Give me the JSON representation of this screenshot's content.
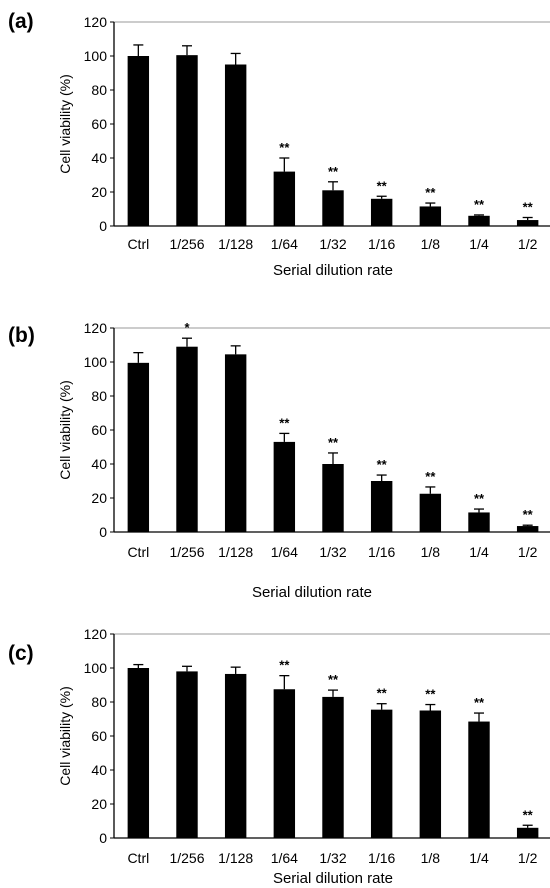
{
  "chart_data": [
    {
      "panel": "(a)",
      "type": "bar",
      "categories": [
        "Ctrl",
        "1/256",
        "1/128",
        "1/64",
        "1/32",
        "1/16",
        "1/8",
        "1/4",
        "1/2"
      ],
      "series": [
        {
          "values": [
            100,
            100.5,
            95,
            32,
            21,
            16,
            11.5,
            6,
            3.5
          ],
          "errors": [
            6.5,
            5.5,
            6.5,
            8,
            5,
            1.5,
            2,
            0.5,
            1.5
          ],
          "significance": [
            "",
            "",
            "",
            "**",
            "**",
            "**",
            "**",
            "**",
            "**"
          ]
        }
      ],
      "xlabel": "Serial dilution  rate",
      "ylabel": "Cell viability (%)",
      "ylim": [
        0,
        120
      ],
      "yticks": [
        "0",
        "20",
        "40",
        "60",
        "80",
        "100",
        "120"
      ],
      "color": "#000000",
      "grid": false
    },
    {
      "panel": "(b)",
      "type": "bar",
      "categories": [
        "Ctrl",
        "1/256",
        "1/128",
        "1/64",
        "1/32",
        "1/16",
        "1/8",
        "1/4",
        "1/2"
      ],
      "series": [
        {
          "values": [
            99.5,
            109,
            104.5,
            53,
            40,
            30,
            22.5,
            11.5,
            3.5
          ],
          "errors": [
            6,
            5,
            5,
            5,
            6.5,
            3.5,
            4,
            2,
            0.5
          ],
          "significance": [
            "",
            "*",
            "",
            "**",
            "**",
            "**",
            "**",
            "**",
            "**"
          ]
        }
      ],
      "xlabel": "Serial  dilution rate",
      "ylabel": "Cell viability (%)",
      "ylim": [
        0,
        120
      ],
      "yticks": [
        "0",
        "20",
        "40",
        "60",
        "80",
        "100",
        "120"
      ],
      "color": "#000000",
      "grid": false
    },
    {
      "panel": "(c)",
      "type": "bar",
      "categories": [
        "Ctrl",
        "1/256",
        "1/128",
        "1/64",
        "1/32",
        "1/16",
        "1/8",
        "1/4",
        "1/2"
      ],
      "series": [
        {
          "values": [
            100,
            98,
            96.5,
            87.5,
            83,
            75.5,
            75,
            68.5,
            6
          ],
          "errors": [
            2,
            3,
            4,
            8,
            4,
            3.5,
            3.5,
            5,
            1.5
          ],
          "significance": [
            "",
            "",
            "",
            "**",
            "**",
            "**",
            "**",
            "**",
            "**"
          ]
        }
      ],
      "xlabel": "Serial  dilution rate",
      "ylabel": "Cell viability (%)",
      "ylim": [
        0,
        120
      ],
      "yticks": [
        "0",
        "20",
        "40",
        "60",
        "80",
        "100",
        "120"
      ],
      "color": "#000000",
      "grid": false
    }
  ]
}
